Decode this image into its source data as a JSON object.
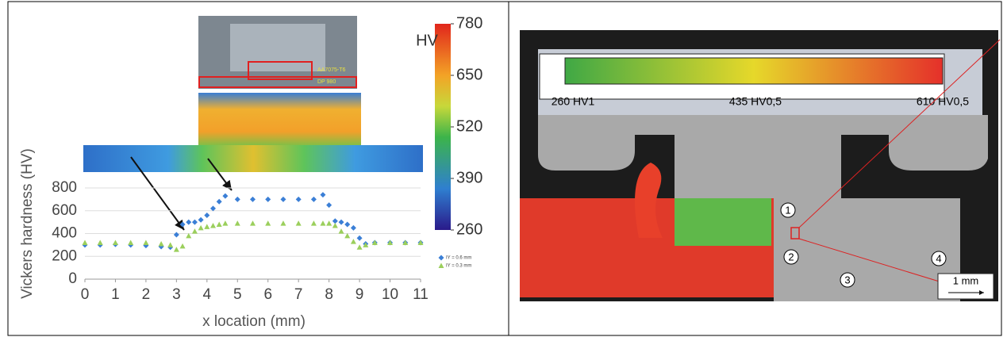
{
  "chart_data": {
    "type": "scatter",
    "x_label": "x location (mm)",
    "y_label": "Vickers hardness (HV)",
    "x": [
      0,
      0.5,
      1,
      1.5,
      2,
      2.5,
      2.8,
      3.0,
      3.2,
      3.4,
      3.6,
      3.8,
      4.0,
      4.2,
      4.4,
      4.6,
      5,
      5.5,
      6,
      6.5,
      7,
      7.5,
      7.8,
      8.0,
      8.2,
      8.4,
      8.6,
      8.8,
      9.0,
      9.2,
      9.5,
      10,
      10.5,
      11
    ],
    "series": [
      {
        "name": "IY = 0.6 mm",
        "color": "#3b7fd6",
        "marker": "diamond",
        "values": [
          300,
          300,
          305,
          300,
          295,
          285,
          280,
          390,
          480,
          500,
          500,
          520,
          560,
          620,
          680,
          730,
          700,
          700,
          700,
          700,
          700,
          700,
          740,
          650,
          510,
          500,
          480,
          450,
          360,
          310,
          320,
          320,
          320,
          320
        ]
      },
      {
        "name": "IY = 0.3 mm",
        "color": "#9bcf5c",
        "marker": "triangle",
        "values": [
          320,
          320,
          320,
          320,
          320,
          310,
          300,
          260,
          290,
          380,
          420,
          450,
          460,
          470,
          480,
          490,
          490,
          490,
          490,
          490,
          490,
          490,
          490,
          490,
          470,
          420,
          380,
          330,
          280,
          300,
          320,
          320,
          320,
          320
        ]
      }
    ],
    "xlim": [
      0,
      11
    ],
    "xticks": [
      0,
      1,
      2,
      3,
      4,
      5,
      6,
      7,
      8,
      9,
      10,
      11
    ],
    "ylim": [
      0,
      800
    ],
    "yticks": [
      0,
      200,
      400,
      600,
      800
    ],
    "grid": true,
    "colorbar": {
      "label": "HV",
      "lim": [
        260,
        780
      ],
      "ticks": [
        260,
        390,
        520,
        650,
        780
      ]
    },
    "photo_labels": [
      "AA7075-T6",
      "DP 980"
    ]
  },
  "micrograph": {
    "colorbar_labels": [
      "260 HV1",
      "435 HV0,5",
      "610 HV0,5"
    ],
    "markers": [
      "1",
      "2",
      "3",
      "4"
    ],
    "scale_bar": "1 mm"
  }
}
